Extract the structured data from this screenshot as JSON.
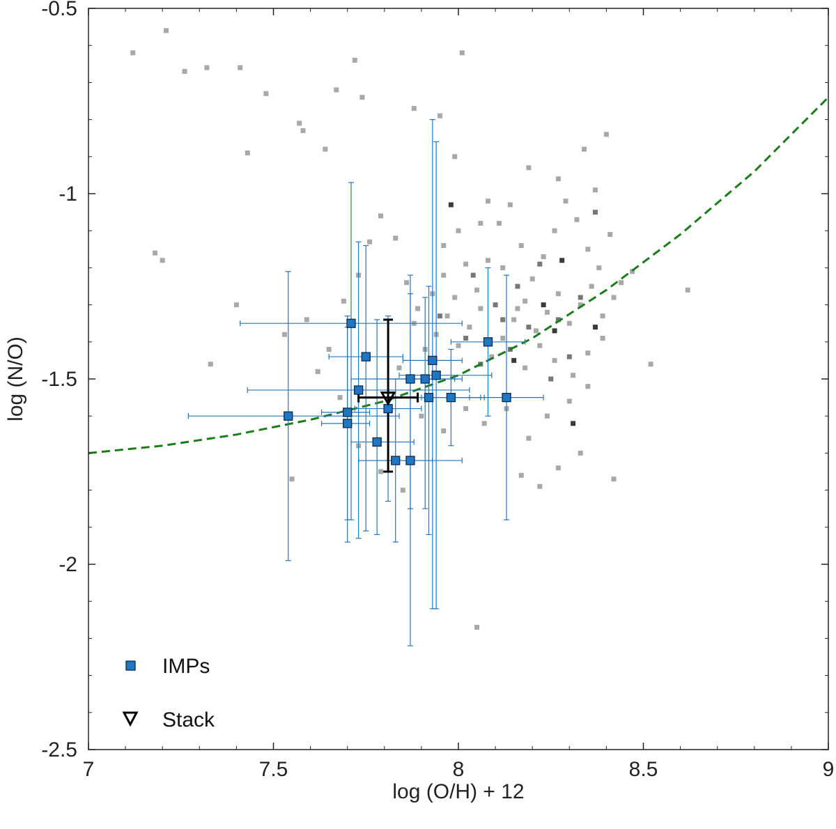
{
  "chart_data": {
    "type": "scatter",
    "title": "",
    "xlabel": "log (O/H) + 12",
    "ylabel": "log (N/O)",
    "xlim": [
      7,
      9
    ],
    "ylim": [
      -2.5,
      -0.5
    ],
    "x_ticks": [
      "7",
      "7.5",
      "8",
      "8.5",
      "9"
    ],
    "x_tick_values": [
      7,
      7.5,
      8,
      8.5,
      9
    ],
    "y_ticks": [
      "-0.5",
      "-1",
      "-1.5",
      "-2",
      "-2.5"
    ],
    "y_tick_values": [
      -0.5,
      -1,
      -1.5,
      -2,
      -2.5
    ],
    "grid": false,
    "legend": {
      "position": "bottom-left",
      "entries": [
        {
          "label": "IMPs",
          "marker": "square",
          "color": "#1f77c4"
        },
        {
          "label": "Stack",
          "marker": "triangle-down",
          "color": "#000000"
        }
      ]
    },
    "colors": {
      "imps": "#1f77c4",
      "stack": "#000000",
      "trend": "#1a7d1a",
      "background_light": "#a8a8a8",
      "background_dark": "#3a3a3a"
    },
    "trend_curve": {
      "style": "dashed",
      "x": [
        7.0,
        7.2,
        7.4,
        7.6,
        7.8,
        8.0,
        8.2,
        8.4,
        8.6,
        8.8,
        9.0
      ],
      "y": [
        -1.7,
        -1.68,
        -1.65,
        -1.61,
        -1.56,
        -1.49,
        -1.39,
        -1.26,
        -1.11,
        -0.94,
        -0.74
      ]
    },
    "series": [
      {
        "name": "IMPs",
        "points": [
          {
            "x": 7.54,
            "y": -1.6,
            "xerr": [
              0.27,
              0.3
            ],
            "yerr": [
              0.39,
              0.39
            ]
          },
          {
            "x": 7.7,
            "y": -1.62,
            "xerr": [
              0.07,
              0.06
            ],
            "yerr": [
              0.26,
              0.26
            ]
          },
          {
            "x": 7.7,
            "y": -1.59,
            "xerr": [
              0.07,
              0.06
            ],
            "yerr": [
              0.35,
              0.26
            ]
          },
          {
            "x": 7.71,
            "y": -1.35,
            "xerr": [
              0.3,
              0.3
            ],
            "yerr": [
              0.53,
              0.38
            ]
          },
          {
            "x": 7.73,
            "y": -1.53,
            "xerr": [
              0.3,
              0.3
            ],
            "yerr": [
              0.4,
              0.4
            ]
          },
          {
            "x": 7.75,
            "y": -1.44,
            "xerr": [
              0.1,
              0.1
            ],
            "yerr": [
              0.47,
              0.3
            ]
          },
          {
            "x": 7.78,
            "y": -1.67,
            "xerr": [
              0.07,
              0.1
            ],
            "yerr": [
              0.25,
              0.33
            ]
          },
          {
            "x": 7.81,
            "y": -1.58,
            "xerr": [
              0.09,
              0.09
            ],
            "yerr": [
              0.25,
              0.25
            ]
          },
          {
            "x": 7.83,
            "y": -1.72,
            "xerr": [
              0.1,
              0.1
            ],
            "yerr": [
              0.22,
              0.22
            ]
          },
          {
            "x": 7.87,
            "y": -1.72,
            "xerr": [
              0.14,
              0.14
            ],
            "yerr": [
              0.5,
              0.5
            ]
          },
          {
            "x": 7.87,
            "y": -1.5,
            "xerr": [
              0.16,
              0.12
            ],
            "yerr": [
              0.35,
              0.23
            ]
          },
          {
            "x": 7.91,
            "y": -1.5,
            "xerr": [
              0.1,
              0.1
            ],
            "yerr": [
              0.35,
              0.22
            ]
          },
          {
            "x": 7.92,
            "y": -1.55,
            "xerr": [
              0.1,
              0.15
            ],
            "yerr": [
              0.37,
              0.3
            ]
          },
          {
            "x": 7.93,
            "y": -1.45,
            "xerr": [
              0.08,
              0.08
            ],
            "yerr": [
              0.67,
              0.65
            ]
          },
          {
            "x": 7.94,
            "y": -1.49,
            "xerr": [
              0.1,
              0.15
            ],
            "yerr": [
              0.63,
              0.63
            ]
          },
          {
            "x": 7.98,
            "y": -1.55,
            "xerr": [
              0.08,
              0.08
            ],
            "yerr": [
              0.13,
              0.13
            ]
          },
          {
            "x": 8.08,
            "y": -1.4,
            "xerr": [
              0.1,
              0.1
            ],
            "yerr": [
              0.2,
              0.2
            ]
          },
          {
            "x": 8.13,
            "y": -1.55,
            "xerr": [
              0.1,
              0.1
            ],
            "yerr": [
              0.33,
              0.33
            ]
          }
        ]
      },
      {
        "name": "Stack",
        "points": [
          {
            "x": 7.81,
            "y": -1.55,
            "xerr": [
              0.08,
              0.08
            ],
            "yerr": [
              0.2,
              0.21
            ]
          }
        ]
      }
    ],
    "background_density": {
      "cells": [
        [
          7.12,
          -0.62,
          0
        ],
        [
          7.21,
          -0.56,
          0
        ],
        [
          7.26,
          -0.67,
          0
        ],
        [
          7.32,
          -0.66,
          0
        ],
        [
          7.41,
          -0.66,
          0
        ],
        [
          7.48,
          -0.73,
          0
        ],
        [
          7.57,
          -0.81,
          0
        ],
        [
          7.67,
          -0.72,
          0
        ],
        [
          7.72,
          -0.64,
          0
        ],
        [
          8.01,
          -0.62,
          0
        ],
        [
          7.18,
          -1.16,
          0
        ],
        [
          7.2,
          -1.18,
          0
        ],
        [
          7.4,
          -1.3,
          0
        ],
        [
          7.43,
          -0.89,
          0
        ],
        [
          7.58,
          -0.83,
          0
        ],
        [
          7.64,
          -0.88,
          0
        ],
        [
          7.74,
          -0.74,
          0
        ],
        [
          7.88,
          -0.77,
          0
        ],
        [
          7.95,
          -0.79,
          0
        ],
        [
          7.99,
          -0.9,
          0
        ],
        [
          7.33,
          -1.46,
          0
        ],
        [
          7.53,
          -1.38,
          0
        ],
        [
          7.59,
          -1.34,
          0
        ],
        [
          7.65,
          -1.42,
          0
        ],
        [
          7.69,
          -1.29,
          0
        ],
        [
          7.73,
          -1.22,
          0
        ],
        [
          7.76,
          -1.13,
          0
        ],
        [
          7.79,
          -1.06,
          0
        ],
        [
          7.83,
          -1.12,
          0
        ],
        [
          7.86,
          -1.24,
          0
        ],
        [
          7.89,
          -1.31,
          0
        ],
        [
          7.93,
          -1.27,
          0
        ],
        [
          7.96,
          -1.22,
          0
        ],
        [
          7.99,
          -1.28,
          0
        ],
        [
          8.02,
          -1.19,
          0
        ],
        [
          8.05,
          -1.26,
          0
        ],
        [
          8.08,
          -1.18,
          0
        ],
        [
          8.11,
          -1.08,
          0
        ],
        [
          8.14,
          -1.03,
          0
        ],
        [
          8.17,
          -1.14,
          0
        ],
        [
          8.2,
          -1.23,
          0
        ],
        [
          8.23,
          -1.17,
          0
        ],
        [
          8.26,
          -1.1,
          0
        ],
        [
          8.29,
          -1.02,
          0
        ],
        [
          8.32,
          -1.07,
          0
        ],
        [
          8.35,
          -1.15,
          0
        ],
        [
          8.38,
          -1.2,
          0
        ],
        [
          8.41,
          -1.11,
          0
        ],
        [
          8.44,
          -1.24,
          0
        ],
        [
          8.47,
          -1.21,
          0
        ],
        [
          7.88,
          -1.35,
          0
        ],
        [
          7.91,
          -1.42,
          0
        ],
        [
          7.94,
          -1.38,
          0
        ],
        [
          7.97,
          -1.33,
          0
        ],
        [
          8.0,
          -1.41,
          0
        ],
        [
          8.03,
          -1.36,
          0
        ],
        [
          8.06,
          -1.31,
          0
        ],
        [
          8.09,
          -1.44,
          0
        ],
        [
          8.12,
          -1.39,
          0
        ],
        [
          8.15,
          -1.34,
          0
        ],
        [
          8.18,
          -1.29,
          0
        ],
        [
          8.21,
          -1.37,
          0
        ],
        [
          8.24,
          -1.32,
          0
        ],
        [
          8.27,
          -1.27,
          0
        ],
        [
          8.3,
          -1.35,
          0
        ],
        [
          8.33,
          -1.3,
          0
        ],
        [
          8.36,
          -1.25,
          0
        ],
        [
          8.39,
          -1.33,
          0
        ],
        [
          8.42,
          -1.28,
          0
        ],
        [
          8.18,
          -1.47,
          0
        ],
        [
          7.84,
          -1.47,
          0
        ],
        [
          7.9,
          -1.6,
          0
        ],
        [
          7.96,
          -1.64,
          0
        ],
        [
          8.02,
          -1.58,
          0
        ],
        [
          8.07,
          -1.62,
          0
        ],
        [
          8.13,
          -1.58,
          0
        ],
        [
          8.19,
          -1.66,
          0
        ],
        [
          8.24,
          -1.6,
          0
        ],
        [
          8.3,
          -1.56,
          0
        ],
        [
          8.35,
          -1.52,
          0
        ],
        [
          7.55,
          -1.77,
          0
        ],
        [
          7.62,
          -1.48,
          0
        ],
        [
          7.68,
          -1.55,
          0
        ],
        [
          7.73,
          -1.68,
          0
        ],
        [
          7.79,
          -1.75,
          0
        ],
        [
          7.85,
          -1.8,
          0
        ],
        [
          8.05,
          -2.17,
          0
        ],
        [
          8.17,
          -1.76,
          0
        ],
        [
          8.22,
          -1.79,
          0
        ],
        [
          8.27,
          -1.74,
          0
        ],
        [
          8.33,
          -1.7,
          0
        ],
        [
          8.42,
          -1.77,
          0
        ],
        [
          8.52,
          -1.46,
          0
        ],
        [
          8.62,
          -1.26,
          0
        ],
        [
          8.08,
          -1.02,
          0
        ],
        [
          8.19,
          -0.93,
          0
        ],
        [
          8.27,
          -0.96,
          0
        ],
        [
          8.34,
          -0.88,
          0
        ],
        [
          8.4,
          -0.84,
          0
        ],
        [
          8.37,
          -0.99,
          0
        ],
        [
          8.06,
          -1.08,
          0
        ],
        [
          8.12,
          -1.2,
          0
        ],
        [
          8.16,
          -1.31,
          0
        ],
        [
          8.22,
          -1.41,
          0
        ],
        [
          8.26,
          -1.45,
          0
        ],
        [
          8.31,
          -1.49,
          0
        ],
        [
          8.35,
          -1.43,
          0
        ],
        [
          8.39,
          -1.39,
          0
        ],
        [
          8.0,
          -1.1,
          0
        ],
        [
          7.96,
          -1.14,
          0
        ],
        [
          8.04,
          -1.22,
          1
        ],
        [
          8.1,
          -1.3,
          1
        ],
        [
          8.16,
          -1.25,
          1
        ],
        [
          8.22,
          -1.19,
          1
        ],
        [
          8.27,
          -1.34,
          1
        ],
        [
          8.33,
          -1.28,
          1
        ],
        [
          8.06,
          -1.46,
          1
        ],
        [
          8.14,
          -1.42,
          1
        ],
        [
          8.3,
          -1.44,
          1
        ],
        [
          8.37,
          -1.05,
          1
        ],
        [
          7.95,
          -1.33,
          1
        ],
        [
          8.02,
          -1.39,
          1
        ],
        [
          8.25,
          -1.5,
          1
        ],
        [
          8.19,
          -1.36,
          1
        ],
        [
          8.12,
          -1.34,
          1
        ],
        [
          8.15,
          -1.45,
          2
        ],
        [
          8.23,
          -1.3,
          2
        ],
        [
          8.28,
          -1.18,
          2
        ],
        [
          8.31,
          -1.62,
          2
        ],
        [
          7.98,
          -1.03,
          2
        ],
        [
          8.37,
          -1.36,
          2
        ],
        [
          8.26,
          -1.37,
          2
        ]
      ]
    }
  }
}
